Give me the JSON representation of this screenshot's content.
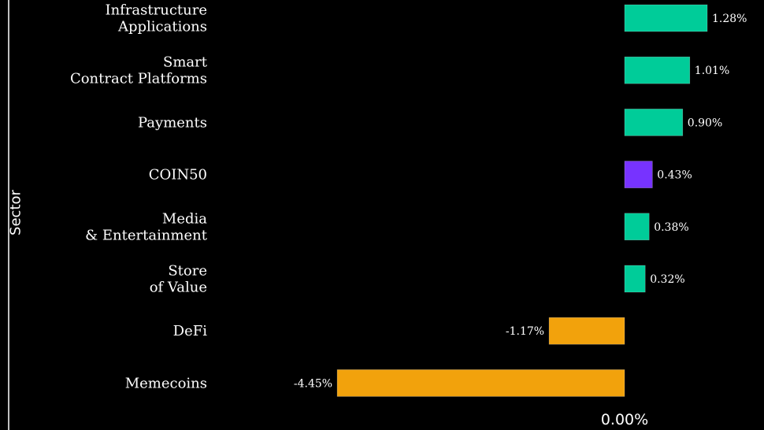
{
  "chart_data": {
    "type": "bar",
    "orientation": "horizontal",
    "ylabel": "Sector",
    "categories": [
      [
        "Infrastructure",
        "Applications"
      ],
      [
        "Smart",
        "Contract Platforms"
      ],
      [
        "Payments"
      ],
      [
        "COIN50"
      ],
      [
        "Media",
        "& Entertainment"
      ],
      [
        "Store",
        "of Value"
      ],
      [
        "DeFi"
      ],
      [
        "Memecoins"
      ]
    ],
    "values": [
      1.28,
      1.01,
      0.9,
      0.43,
      0.38,
      0.32,
      -1.17,
      -4.45
    ],
    "value_labels": [
      "1.28%",
      "1.01%",
      "0.90%",
      "0.43%",
      "0.38%",
      "0.32%",
      "-1.17%",
      "-4.45%"
    ],
    "bar_colors": [
      "#00CC99",
      "#00CC99",
      "#00CC99",
      "#7733FF",
      "#00CC99",
      "#00CC99",
      "#F2A20C",
      "#F2A20C"
    ],
    "zero_tick_label": "0.00%",
    "grid": false,
    "background": "#000000",
    "text_color": "#FFFFFF"
  }
}
